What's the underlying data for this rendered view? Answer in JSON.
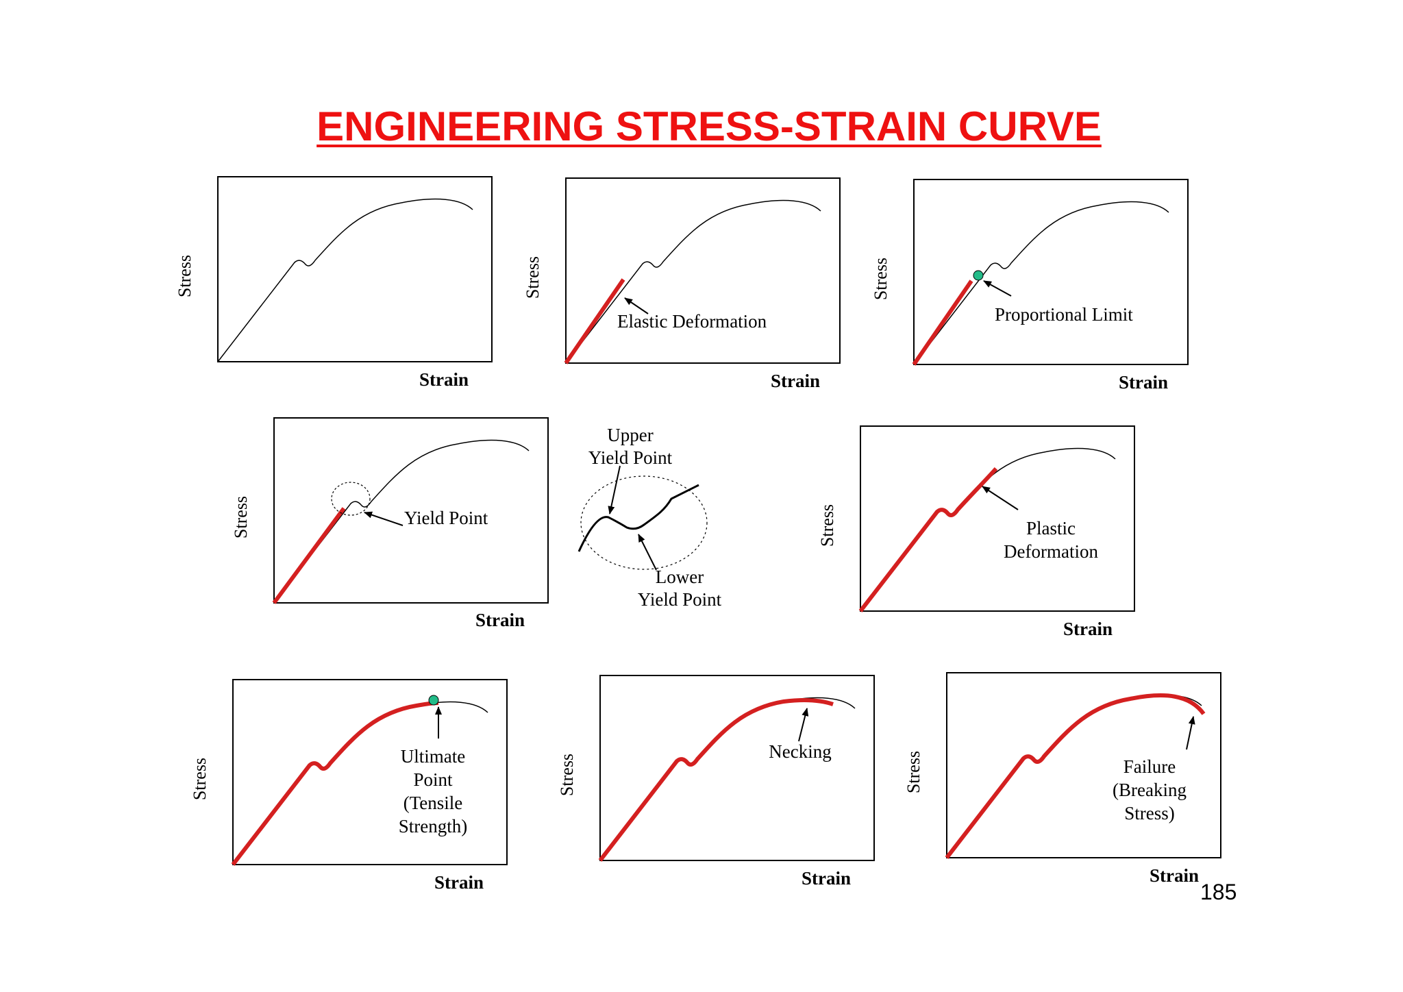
{
  "title": "ENGINEERING STRESS-STRAIN CURVE",
  "page_number": "185",
  "colors": {
    "title": "#ee1111",
    "highlight": "#d42020",
    "marker": "#22bb88",
    "curve": "#000000"
  },
  "panels": [
    {
      "id": "full-curve",
      "stress_label": "Stress",
      "strain_label": "Strain",
      "highlight": "none",
      "annotation": []
    },
    {
      "id": "elastic-deformation",
      "stress_label": "Stress",
      "strain_label": "Strain",
      "highlight": "elastic",
      "annotation": [
        "Elastic Deformation"
      ]
    },
    {
      "id": "proportional-limit",
      "stress_label": "Stress",
      "strain_label": "Strain",
      "highlight": "elastic",
      "marker": "proportional-limit",
      "annotation": [
        "Proportional Limit"
      ]
    },
    {
      "id": "yield-point",
      "stress_label": "Stress",
      "strain_label": "Strain",
      "highlight": "elastic",
      "annotation": [
        "Yield Point"
      ]
    },
    {
      "id": "plastic-deformation",
      "stress_label": "Stress",
      "strain_label": "Strain",
      "highlight": "plastic",
      "annotation": [
        "Plastic",
        "Deformation"
      ]
    },
    {
      "id": "ultimate-point",
      "stress_label": "Stress",
      "strain_label": "Strain",
      "highlight": "to-ultimate",
      "marker": "ultimate",
      "annotation": [
        "Ultimate",
        "Point",
        "(Tensile",
        "Strength)"
      ]
    },
    {
      "id": "necking",
      "stress_label": "Stress",
      "strain_label": "Strain",
      "highlight": "necking",
      "annotation": [
        "Necking"
      ]
    },
    {
      "id": "failure",
      "stress_label": "Stress",
      "strain_label": "Strain",
      "highlight": "failure",
      "annotation": [
        "Failure",
        "(Breaking",
        "Stress)"
      ]
    }
  ],
  "yield_inset": {
    "upper_label": [
      "Upper",
      "Yield Point"
    ],
    "lower_label": [
      "Lower",
      "Yield Point"
    ]
  }
}
